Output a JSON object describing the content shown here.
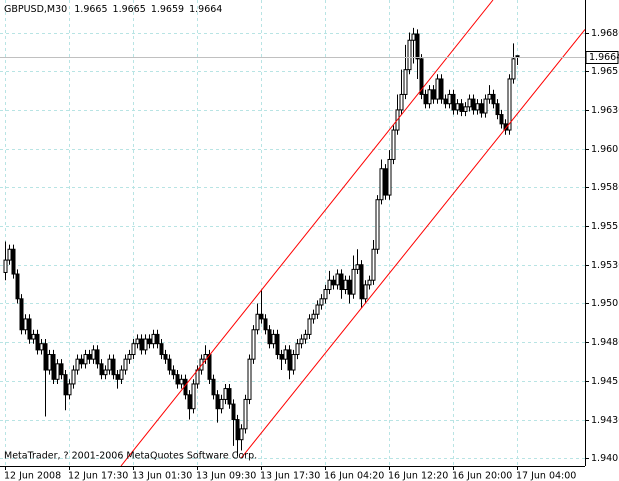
{
  "chart_data": {
    "type": "candlestick",
    "title": "GBPUSD,M30",
    "watermark": "MetaTrader, ? 2001-2006 MetaQuotes Software Corp.",
    "categories": [
      "12 Jun 2008",
      null,
      null,
      null,
      null,
      null,
      null,
      null,
      null,
      null,
      null,
      null,
      null,
      null,
      null,
      null,
      "12 Jun 17:30",
      null,
      null,
      null,
      null,
      null,
      null,
      null,
      null,
      null,
      null,
      null,
      null,
      null,
      null,
      null,
      "13 Jun 01:30",
      null,
      null,
      null,
      null,
      null,
      null,
      null,
      null,
      null,
      null,
      null,
      null,
      null,
      null,
      null,
      "13 Jun 09:30",
      null,
      null,
      null,
      null,
      null,
      null,
      null,
      null,
      null,
      null,
      null,
      null,
      null,
      null,
      null,
      "13 Jun 17:30",
      null,
      null,
      null,
      null,
      null,
      null,
      null,
      null,
      null,
      null,
      null,
      null,
      null,
      null,
      null,
      "16 Jun 04:20",
      null,
      null,
      null,
      null,
      null,
      null,
      null,
      null,
      null,
      null,
      null,
      null,
      null,
      null,
      null,
      "16 Jun 12:20",
      null,
      null,
      null,
      null,
      null,
      null,
      null,
      null,
      null,
      null,
      null,
      null,
      null,
      null,
      null,
      "16 Jun 20:00",
      null,
      null,
      null,
      null,
      null,
      null,
      null,
      null,
      null,
      null,
      null,
      null,
      null,
      null,
      null,
      "17 Jun 04:00"
    ],
    "ohlc": [
      [
        1.9525,
        1.9545,
        1.952,
        1.9533
      ],
      [
        1.9533,
        1.9543,
        1.953,
        1.954
      ],
      [
        1.954,
        1.9543,
        1.9521,
        1.9524
      ],
      [
        1.9524,
        1.9527,
        1.9505,
        1.9508
      ],
      [
        1.9508,
        1.9511,
        1.9485,
        1.9488
      ],
      [
        1.9488,
        1.9498,
        1.9485,
        1.9495
      ],
      [
        1.9495,
        1.9498,
        1.9479,
        1.9482
      ],
      [
        1.9482,
        1.9488,
        1.9479,
        1.9485
      ],
      [
        1.9485,
        1.9488,
        1.9472,
        1.9475
      ],
      [
        1.9475,
        1.9482,
        1.9472,
        1.9479
      ],
      [
        1.9479,
        1.9482,
        1.9432,
        1.9462
      ],
      [
        1.9462,
        1.9475,
        1.9459,
        1.9472
      ],
      [
        1.9472,
        1.9475,
        1.9453,
        1.9456
      ],
      [
        1.9456,
        1.9469,
        1.9453,
        1.9466
      ],
      [
        1.9466,
        1.9469,
        1.9456,
        1.9459
      ],
      [
        1.9459,
        1.9462,
        1.9436,
        1.9446
      ],
      [
        1.9446,
        1.9456,
        1.9443,
        1.9453
      ],
      [
        1.9453,
        1.9465,
        1.945,
        1.9462
      ],
      [
        1.9462,
        1.9472,
        1.9459,
        1.9469
      ],
      [
        1.9469,
        1.9472,
        1.9463,
        1.9466
      ],
      [
        1.9466,
        1.9475,
        1.9463,
        1.9472
      ],
      [
        1.9472,
        1.9475,
        1.9466,
        1.9469
      ],
      [
        1.9469,
        1.9478,
        1.9466,
        1.9475
      ],
      [
        1.9475,
        1.9478,
        1.9463,
        1.9466
      ],
      [
        1.9466,
        1.9469,
        1.9456,
        1.9459
      ],
      [
        1.9459,
        1.9465,
        1.9456,
        1.9462
      ],
      [
        1.9462,
        1.9472,
        1.9459,
        1.9469
      ],
      [
        1.9469,
        1.9472,
        1.9456,
        1.9459
      ],
      [
        1.9459,
        1.9462,
        1.945,
        1.9456
      ],
      [
        1.9456,
        1.9465,
        1.9453,
        1.9462
      ],
      [
        1.9462,
        1.9472,
        1.9459,
        1.9469
      ],
      [
        1.9469,
        1.9475,
        1.9466,
        1.9472
      ],
      [
        1.9472,
        1.9482,
        1.9469,
        1.9479
      ],
      [
        1.9479,
        1.9485,
        1.9476,
        1.9482
      ],
      [
        1.9482,
        1.9485,
        1.9472,
        1.9475
      ],
      [
        1.9475,
        1.9485,
        1.9472,
        1.9482
      ],
      [
        1.9482,
        1.9485,
        1.9476,
        1.9479
      ],
      [
        1.9479,
        1.9488,
        1.9476,
        1.9485
      ],
      [
        1.9485,
        1.9488,
        1.9476,
        1.9479
      ],
      [
        1.9479,
        1.9482,
        1.9469,
        1.9472
      ],
      [
        1.9472,
        1.9475,
        1.9466,
        1.9469
      ],
      [
        1.9469,
        1.9472,
        1.9459,
        1.9462
      ],
      [
        1.9462,
        1.9465,
        1.9456,
        1.9459
      ],
      [
        1.9459,
        1.9462,
        1.945,
        1.9453
      ],
      [
        1.9453,
        1.9459,
        1.945,
        1.9456
      ],
      [
        1.9456,
        1.9459,
        1.9443,
        1.9446
      ],
      [
        1.9446,
        1.9449,
        1.943,
        1.9437
      ],
      [
        1.9437,
        1.9456,
        1.9434,
        1.9453
      ],
      [
        1.9453,
        1.9465,
        1.945,
        1.9462
      ],
      [
        1.9462,
        1.9472,
        1.9459,
        1.9469
      ],
      [
        1.9469,
        1.9478,
        1.9466,
        1.9472
      ],
      [
        1.9472,
        1.9475,
        1.9453,
        1.9456
      ],
      [
        1.9456,
        1.9459,
        1.9443,
        1.9446
      ],
      [
        1.9446,
        1.9449,
        1.9428,
        1.9437
      ],
      [
        1.9437,
        1.9446,
        1.9434,
        1.9443
      ],
      [
        1.9443,
        1.9453,
        1.944,
        1.945
      ],
      [
        1.945,
        1.9453,
        1.9437,
        1.944
      ],
      [
        1.944,
        1.9443,
        1.9413,
        1.943
      ],
      [
        1.943,
        1.9433,
        1.9406,
        1.9417
      ],
      [
        1.9417,
        1.9427,
        1.941,
        1.9424
      ],
      [
        1.9424,
        1.9446,
        1.9421,
        1.9443
      ],
      [
        1.9443,
        1.9472,
        1.944,
        1.9469
      ],
      [
        1.9469,
        1.9491,
        1.9466,
        1.9488
      ],
      [
        1.9488,
        1.9505,
        1.9485,
        1.9498
      ],
      [
        1.9498,
        1.9514,
        1.9492,
        1.9495
      ],
      [
        1.9495,
        1.9498,
        1.9485,
        1.9488
      ],
      [
        1.9488,
        1.9491,
        1.9476,
        1.9479
      ],
      [
        1.9479,
        1.9488,
        1.9476,
        1.9485
      ],
      [
        1.9485,
        1.9488,
        1.9469,
        1.9472
      ],
      [
        1.9472,
        1.9475,
        1.9462,
        1.9469
      ],
      [
        1.9469,
        1.9478,
        1.9466,
        1.9475
      ],
      [
        1.9475,
        1.9478,
        1.9456,
        1.9462
      ],
      [
        1.9462,
        1.9475,
        1.9459,
        1.9472
      ],
      [
        1.9472,
        1.9482,
        1.9469,
        1.9479
      ],
      [
        1.9479,
        1.9485,
        1.9476,
        1.9482
      ],
      [
        1.9482,
        1.9488,
        1.9479,
        1.9485
      ],
      [
        1.9485,
        1.9498,
        1.9482,
        1.9495
      ],
      [
        1.9495,
        1.9501,
        1.9492,
        1.9498
      ],
      [
        1.9498,
        1.9507,
        1.9495,
        1.9504
      ],
      [
        1.9504,
        1.9511,
        1.9501,
        1.9508
      ],
      [
        1.9508,
        1.9517,
        1.9505,
        1.9514
      ],
      [
        1.9514,
        1.9526,
        1.9511,
        1.952
      ],
      [
        1.952,
        1.9523,
        1.9514,
        1.9517
      ],
      [
        1.9517,
        1.9527,
        1.9514,
        1.9524
      ],
      [
        1.9524,
        1.9527,
        1.9508,
        1.9514
      ],
      [
        1.9514,
        1.9523,
        1.9511,
        1.952
      ],
      [
        1.952,
        1.9523,
        1.9505,
        1.9511
      ],
      [
        1.9511,
        1.9536,
        1.9508,
        1.9527
      ],
      [
        1.9527,
        1.954,
        1.9524,
        1.953
      ],
      [
        1.953,
        1.9533,
        1.9502,
        1.9508
      ],
      [
        1.9508,
        1.952,
        1.9505,
        1.9517
      ],
      [
        1.9517,
        1.9523,
        1.9514,
        1.952
      ],
      [
        1.952,
        1.9546,
        1.9517,
        1.954
      ],
      [
        1.954,
        1.9575,
        1.9537,
        1.9572
      ],
      [
        1.9572,
        1.9598,
        1.9569,
        1.9592
      ],
      [
        1.9592,
        1.9595,
        1.9572,
        1.9575
      ],
      [
        1.9575,
        1.9604,
        1.9572,
        1.9598
      ],
      [
        1.9598,
        1.962,
        1.9595,
        1.9617
      ],
      [
        1.9617,
        1.964,
        1.9614,
        1.963
      ],
      [
        1.963,
        1.9656,
        1.9627,
        1.964
      ],
      [
        1.964,
        1.9672,
        1.9637,
        1.9656
      ],
      [
        1.9656,
        1.968,
        1.9653,
        1.9675
      ],
      [
        1.9675,
        1.9683,
        1.966,
        1.9679
      ],
      [
        1.9679,
        1.9682,
        1.965,
        1.9663
      ],
      [
        1.9663,
        1.9666,
        1.9637,
        1.964
      ],
      [
        1.964,
        1.9643,
        1.9631,
        1.9634
      ],
      [
        1.9634,
        1.9646,
        1.9631,
        1.9643
      ],
      [
        1.9643,
        1.9646,
        1.9634,
        1.9637
      ],
      [
        1.9637,
        1.9653,
        1.9634,
        1.965
      ],
      [
        1.965,
        1.9653,
        1.9634,
        1.9637
      ],
      [
        1.9637,
        1.964,
        1.9631,
        1.9634
      ],
      [
        1.9634,
        1.9643,
        1.9631,
        1.964
      ],
      [
        1.964,
        1.9643,
        1.9627,
        1.963
      ],
      [
        1.963,
        1.9637,
        1.9627,
        1.9634
      ],
      [
        1.9634,
        1.9637,
        1.9626,
        1.9629
      ],
      [
        1.9629,
        1.9635,
        1.9626,
        1.9632
      ],
      [
        1.9632,
        1.964,
        1.9629,
        1.9637
      ],
      [
        1.9637,
        1.964,
        1.9627,
        1.963
      ],
      [
        1.963,
        1.9637,
        1.9627,
        1.9634
      ],
      [
        1.9634,
        1.9637,
        1.9625,
        1.9628
      ],
      [
        1.9628,
        1.964,
        1.9625,
        1.9637
      ],
      [
        1.9637,
        1.9646,
        1.9634,
        1.964
      ],
      [
        1.964,
        1.9643,
        1.9631,
        1.9634
      ],
      [
        1.9634,
        1.9637,
        1.9624,
        1.9627
      ],
      [
        1.9627,
        1.963,
        1.9618,
        1.9621
      ],
      [
        1.9621,
        1.9624,
        1.9614,
        1.9617
      ],
      [
        1.9617,
        1.9653,
        1.9614,
        1.965
      ],
      [
        1.965,
        1.9673,
        1.9647,
        1.9663
      ],
      [
        1.9665,
        1.9665,
        1.9659,
        1.9664
      ]
    ],
    "ylim": [
      1.94,
      1.9701
    ],
    "yticks": [
      1.9405,
      {
        "value": 1.943,
        "label": "1.9430"
      },
      1.9455,
      {
        "value": 1.948,
        "label": "1.9480"
      },
      1.9505,
      {
        "value": 1.953,
        "label": "1.9530"
      },
      1.9555,
      {
        "value": 1.958,
        "label": "1.9580"
      },
      1.9605,
      {
        "value": 1.963,
        "label": "1.9630"
      },
      1.9655,
      {
        "value": 1.968,
        "label": "1.9680"
      }
    ],
    "grid": true,
    "up_color": "#ffffff",
    "down_color": "#000000",
    "outline_color": "#000000",
    "channel": [
      {
        "color": "#ff0000",
        "points": [
          [
            29,
            1.94
          ],
          [
            122,
            1.9701
          ]
        ]
      },
      {
        "color": "#ff0000",
        "points": [
          [
            59,
            1.9405
          ],
          [
            145,
            1.9682
          ]
        ]
      }
    ]
  }
}
